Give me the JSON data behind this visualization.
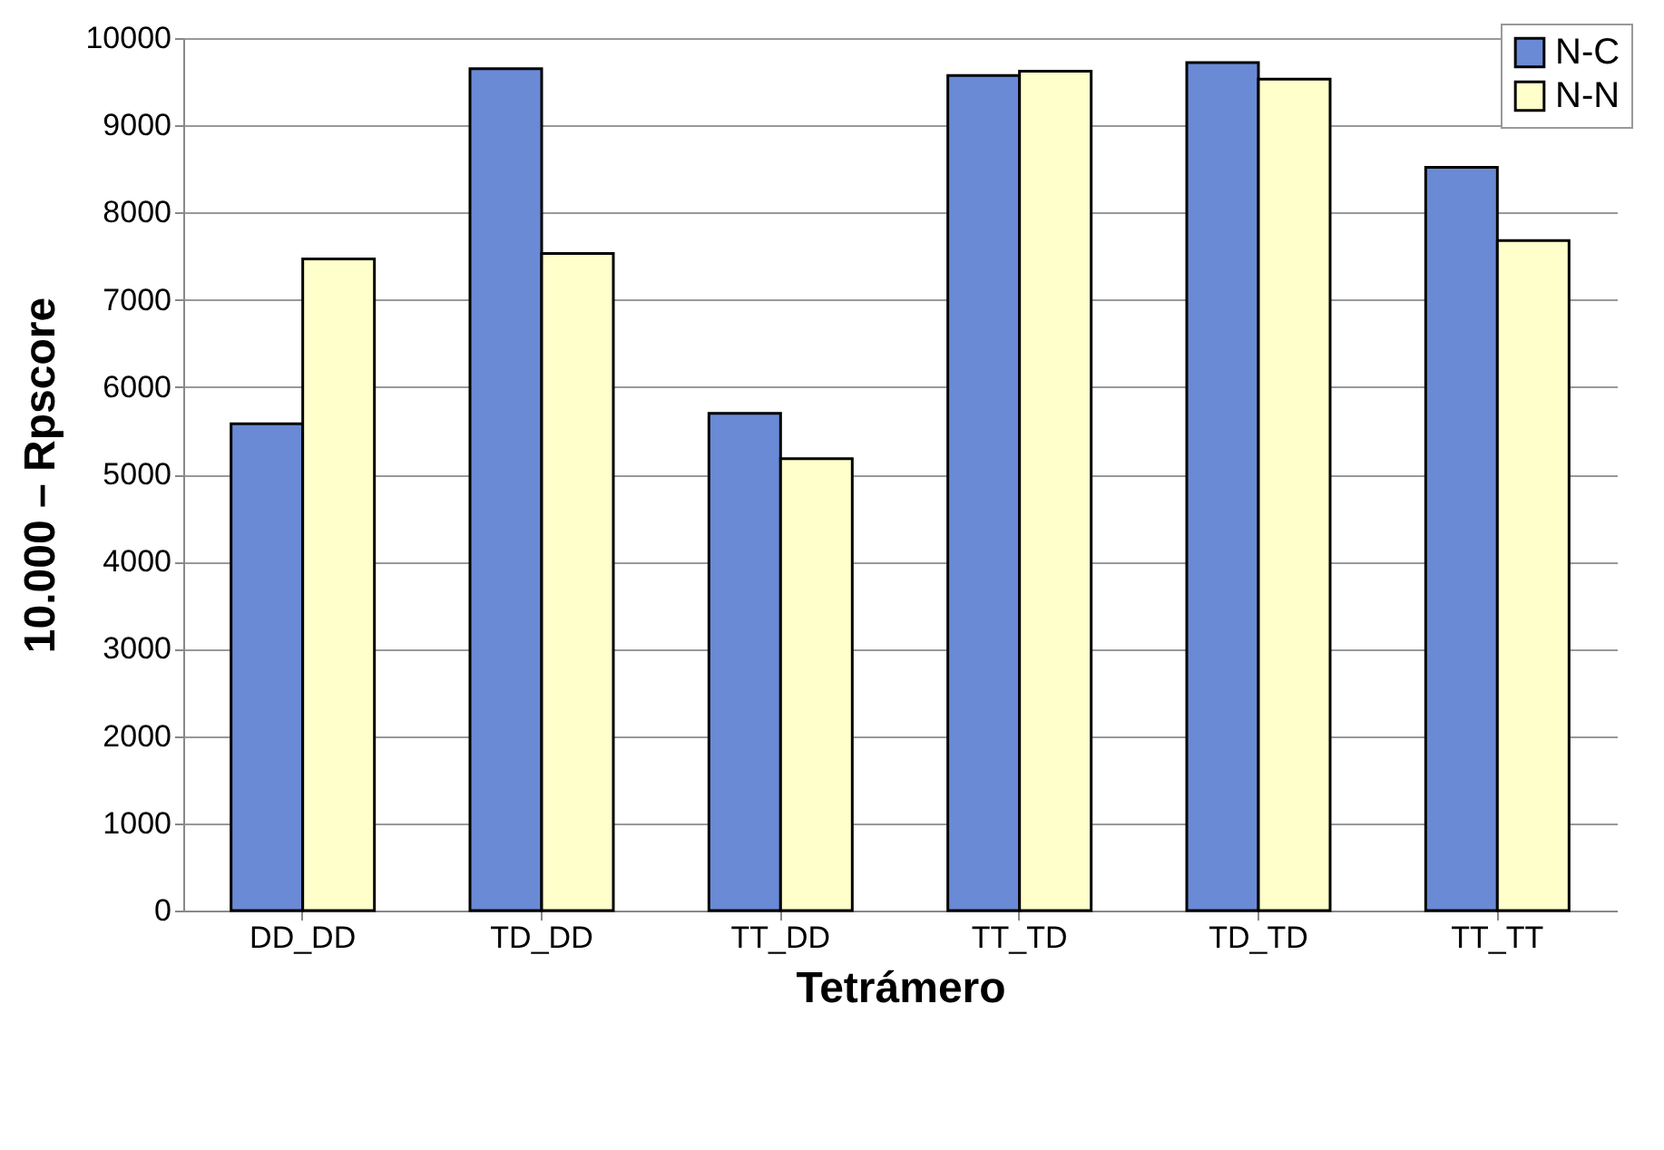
{
  "chart_data": {
    "type": "bar",
    "xlabel": "Tetrámero",
    "ylabel": "10.000 – Rpscore",
    "categories": [
      "DD_DD",
      "TD_DD",
      "TT_DD",
      "TT_TD",
      "TD_TD",
      "TT_TT"
    ],
    "series": [
      {
        "name": "N-C",
        "color": "#6a8ad6",
        "values": [
          5580,
          9650,
          5700,
          9570,
          9720,
          8520
        ]
      },
      {
        "name": "N-N",
        "color": "#ffffcc",
        "values": [
          7470,
          7530,
          5180,
          9620,
          9530,
          7680
        ]
      }
    ],
    "ylim": [
      0,
      10000
    ],
    "yticks": [
      0,
      1000,
      2000,
      3000,
      4000,
      5000,
      6000,
      7000,
      8000,
      9000,
      10000
    ],
    "grid": "y",
    "legend": "top right"
  }
}
